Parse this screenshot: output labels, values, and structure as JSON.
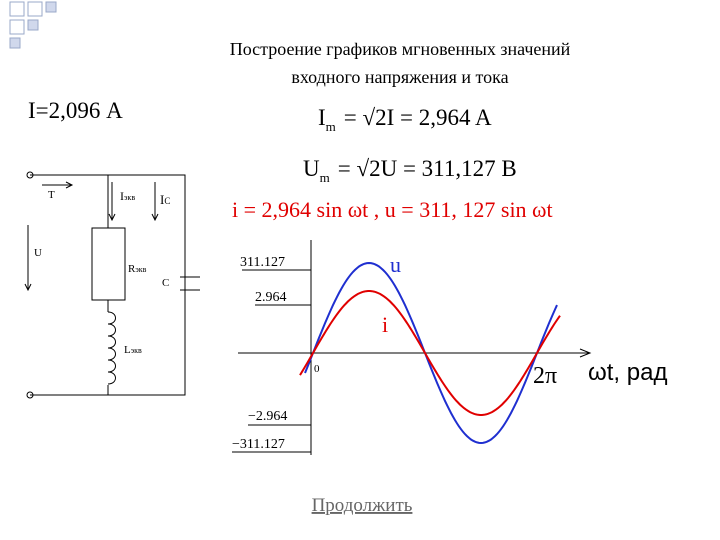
{
  "header": {
    "title_lines": [
      "Построение графиков мгновенных значений",
      "входного напряжения и тока"
    ]
  },
  "given": "I=2,096 А",
  "formulas": {
    "current_amplitude": {
      "symbol": "I",
      "subscript": "m",
      "expression": "= √2I = 2,964 A"
    },
    "voltage_amplitude": {
      "symbol": "U",
      "subscript": "m",
      "expression": "= √2U = 311,127 В"
    },
    "instantaneous": "i =  2,964 sin ωt , u = 311, 127 sin ωt"
  },
  "circuit": {
    "labels": {
      "current": "T",
      "voltage": "U",
      "i_eq": "I",
      "i_eq_sub": "экв",
      "i_c": "I",
      "i_c_sub": "C",
      "r_eq": "R",
      "r_eq_sub": "экв",
      "c": "C",
      "l_eq": "L",
      "l_eq_sub": "экв"
    }
  },
  "plot": {
    "tick_labels": [
      "311.127",
      "2.964",
      "−2.964",
      "−311.127"
    ],
    "origin": "0",
    "period": "2π",
    "axis_label": "ωt, рад",
    "curve_u": "u",
    "curve_i": "i"
  },
  "link": "Продолжить"
}
